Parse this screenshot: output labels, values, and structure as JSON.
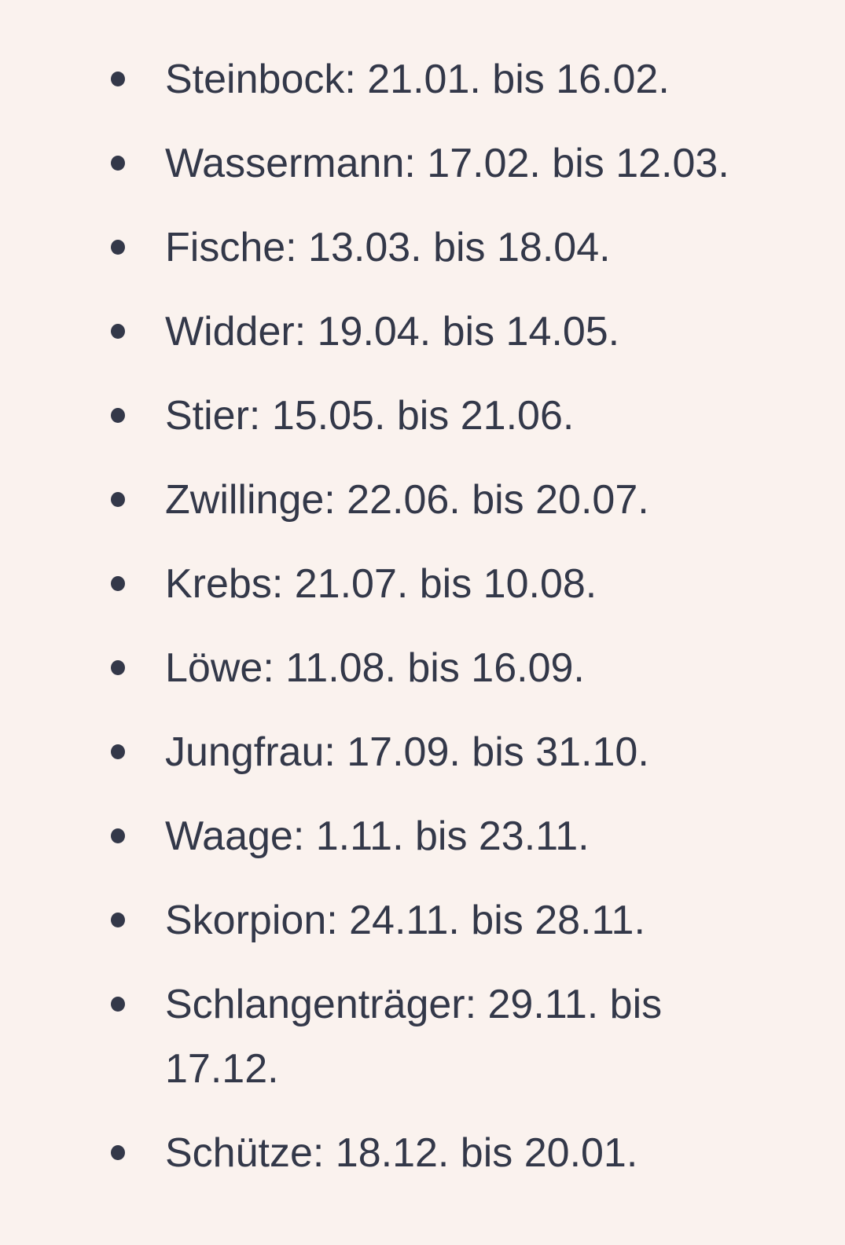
{
  "page": {
    "background_color": "#faf2ee",
    "text_color": "#333849",
    "bullet_color": "#333849"
  },
  "list": {
    "items": [
      "Steinbock: 21.01. bis 16.02.",
      "Wassermann: 17.02. bis 12.03.",
      "Fische: 13.03. bis 18.04.",
      "Widder: 19.04. bis 14.05.",
      "Stier: 15.05. bis 21.06.",
      "Zwillinge: 22.06. bis 20.07.",
      "Krebs: 21.07. bis 10.08.",
      "Löwe: 11.08. bis 16.09.",
      "Jungfrau: 17.09. bis 31.10.",
      "Waage: 1.11. bis 23.11.",
      "Skorpion: 24.11. bis 28.11.",
      "Schlangenträger: 29.11. bis 17.12.",
      "Schütze: 18.12. bis 20.01."
    ]
  }
}
